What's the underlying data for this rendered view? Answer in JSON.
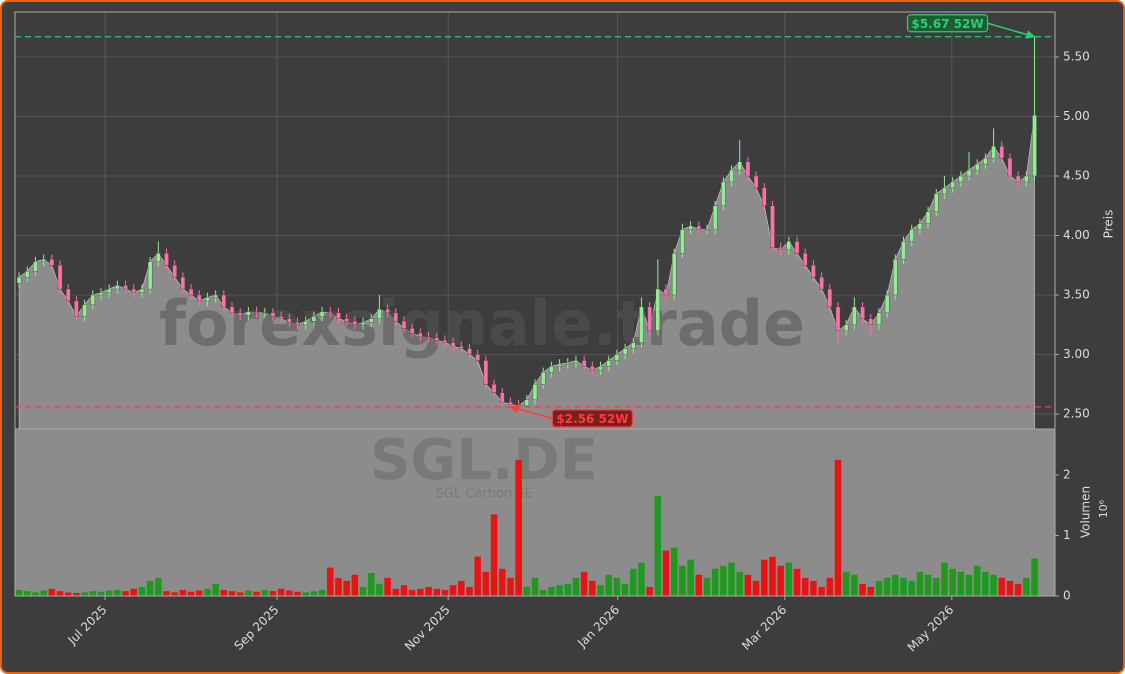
{
  "chart_data": {
    "type": "candlestick",
    "watermark": "forexsignale.trade",
    "symbol": "SGL.DE",
    "company": "SGL Carbon SE",
    "y_label": "Preis",
    "volume_label": "Volumen",
    "volume_unit": "10⁶",
    "up_color": "#90ee90",
    "down_color": "#ff6fa8",
    "volume_up_color": "#1f9a1f",
    "volume_down_color": "#e81414",
    "area_color": "#8c8c8c",
    "grid": true,
    "xlim": [
      -0.5,
      126.5
    ],
    "xticks": [
      {
        "value": 10.5,
        "label": "Jul 2025"
      },
      {
        "value": 31.5,
        "label": "Sep 2025"
      },
      {
        "value": 52.4,
        "label": "Nov 2025"
      },
      {
        "value": 73.1,
        "label": "Jan 2026"
      },
      {
        "value": 93.5,
        "label": "Mar 2026"
      },
      {
        "value": 113.9,
        "label": "May 2026"
      }
    ],
    "ylim": [
      2.374,
      5.878
    ],
    "yticks": [
      {
        "value": 2.5,
        "label": "2.50"
      },
      {
        "value": 3,
        "label": "3.00"
      },
      {
        "value": 3.5,
        "label": "3.50"
      },
      {
        "value": 4,
        "label": "4.00"
      },
      {
        "value": 4.5,
        "label": "4.50"
      },
      {
        "value": 5,
        "label": "5.00"
      },
      {
        "value": 5.5,
        "label": "5.50"
      }
    ],
    "volume_lim": [
      0,
      2.76
    ],
    "volume_ticks": [
      0,
      1,
      2
    ],
    "annotations": [
      {
        "text": "$5.67 52W",
        "value": 5.67,
        "color": "#2ecc71",
        "box_color": "#1e5c34"
      },
      {
        "text": "$2.56 52W",
        "value": 2.56,
        "color": "#ff3b3b",
        "box_color": "#7a1f1f"
      }
    ],
    "open": [
      3.6,
      3.65,
      3.7,
      3.78,
      3.8,
      3.75,
      3.55,
      3.45,
      3.32,
      3.42,
      3.5,
      3.52,
      3.55,
      3.58,
      3.55,
      3.52,
      3.55,
      3.78,
      3.85,
      3.75,
      3.65,
      3.55,
      3.5,
      3.45,
      3.48,
      3.5,
      3.4,
      3.35,
      3.33,
      3.36,
      3.35,
      3.35,
      3.32,
      3.3,
      3.27,
      3.25,
      3.28,
      3.32,
      3.36,
      3.35,
      3.3,
      3.28,
      3.25,
      3.27,
      3.3,
      3.38,
      3.35,
      3.28,
      3.22,
      3.18,
      3.15,
      3.14,
      3.12,
      3.1,
      3.07,
      3.05,
      3.0,
      2.95,
      2.75,
      2.68,
      2.6,
      2.58,
      2.57,
      2.62,
      2.75,
      2.85,
      2.9,
      2.92,
      2.93,
      2.95,
      2.9,
      2.87,
      2.9,
      2.95,
      3.0,
      3.05,
      3.1,
      3.4,
      3.2,
      3.55,
      3.5,
      3.85,
      4.05,
      4.08,
      4.05,
      4.05,
      4.25,
      4.45,
      4.55,
      4.62,
      4.5,
      4.4,
      4.25,
      3.9,
      3.88,
      3.95,
      3.85,
      3.75,
      3.65,
      3.55,
      3.4,
      3.2,
      3.25,
      3.4,
      3.3,
      3.25,
      3.35,
      3.5,
      3.8,
      3.95,
      4.05,
      4.1,
      4.2,
      4.35,
      4.4,
      4.45,
      4.5,
      4.55,
      4.6,
      4.65,
      4.75,
      4.65,
      4.5,
      4.45,
      4.5
    ],
    "high": [
      3.69,
      3.74,
      3.82,
      3.84,
      3.84,
      3.79,
      3.59,
      3.49,
      3.46,
      3.54,
      3.56,
      3.59,
      3.62,
      3.62,
      3.59,
      3.59,
      3.82,
      3.95,
      3.89,
      3.79,
      3.69,
      3.59,
      3.54,
      3.52,
      3.54,
      3.54,
      3.44,
      3.39,
      3.4,
      3.4,
      3.39,
      3.39,
      3.36,
      3.34,
      3.31,
      3.32,
      3.36,
      3.4,
      3.4,
      3.39,
      3.34,
      3.32,
      3.31,
      3.34,
      3.5,
      3.42,
      3.39,
      3.32,
      3.26,
      3.22,
      3.19,
      3.18,
      3.16,
      3.14,
      3.11,
      3.09,
      3.04,
      2.99,
      2.79,
      2.72,
      2.64,
      2.62,
      2.66,
      2.79,
      2.89,
      2.94,
      2.96,
      2.97,
      2.99,
      2.99,
      2.94,
      2.94,
      2.99,
      3.04,
      3.09,
      3.14,
      3.48,
      3.44,
      3.8,
      3.59,
      3.89,
      4.1,
      4.12,
      4.12,
      4.09,
      4.29,
      4.49,
      4.59,
      4.8,
      4.66,
      4.54,
      4.44,
      4.29,
      3.94,
      3.99,
      3.99,
      3.89,
      3.79,
      3.69,
      3.59,
      3.44,
      3.29,
      3.48,
      3.44,
      3.34,
      3.39,
      3.54,
      3.84,
      3.99,
      4.09,
      4.14,
      4.24,
      4.39,
      4.5,
      4.49,
      4.54,
      4.7,
      4.64,
      4.69,
      4.9,
      4.79,
      4.69,
      4.54,
      4.54,
      5.67
    ],
    "low": [
      3.56,
      3.61,
      3.66,
      3.74,
      3.71,
      3.51,
      3.41,
      3.28,
      3.28,
      3.38,
      3.46,
      3.48,
      3.51,
      3.51,
      3.48,
      3.48,
      3.51,
      3.74,
      3.71,
      3.61,
      3.51,
      3.46,
      3.41,
      3.41,
      3.44,
      3.36,
      3.31,
      3.29,
      3.29,
      3.31,
      3.31,
      3.28,
      3.26,
      3.23,
      3.21,
      3.21,
      3.24,
      3.28,
      3.31,
      3.26,
      3.24,
      3.21,
      3.21,
      3.23,
      3.26,
      3.31,
      3.24,
      3.18,
      3.14,
      3.11,
      3.1,
      3.08,
      3.06,
      3.03,
      3.01,
      2.96,
      2.91,
      2.71,
      2.64,
      2.57,
      2.56,
      2.57,
      2.57,
      2.58,
      2.71,
      2.81,
      2.86,
      2.88,
      2.89,
      2.86,
      2.83,
      2.83,
      2.86,
      2.91,
      2.96,
      3.01,
      3.06,
      3.16,
      3.16,
      3.46,
      3.46,
      3.81,
      4.01,
      4.01,
      4.01,
      4.01,
      4.21,
      4.41,
      4.51,
      4.46,
      4.36,
      4.21,
      3.86,
      3.82,
      3.84,
      3.81,
      3.71,
      3.61,
      3.51,
      3.36,
      3.1,
      3.16,
      3.21,
      3.26,
      3.15,
      3.21,
      3.31,
      3.46,
      3.76,
      3.91,
      4.01,
      4.06,
      4.16,
      4.31,
      4.36,
      4.41,
      4.46,
      4.51,
      4.56,
      4.61,
      4.61,
      4.46,
      4.41,
      4.41,
      4.46
    ],
    "close": [
      3.65,
      3.7,
      3.78,
      3.8,
      3.75,
      3.55,
      3.45,
      3.32,
      3.42,
      3.5,
      3.52,
      3.55,
      3.58,
      3.55,
      3.52,
      3.55,
      3.78,
      3.85,
      3.75,
      3.65,
      3.55,
      3.5,
      3.45,
      3.48,
      3.5,
      3.4,
      3.35,
      3.33,
      3.36,
      3.35,
      3.35,
      3.32,
      3.3,
      3.27,
      3.25,
      3.28,
      3.32,
      3.36,
      3.35,
      3.3,
      3.28,
      3.25,
      3.27,
      3.3,
      3.38,
      3.35,
      3.28,
      3.22,
      3.18,
      3.15,
      3.14,
      3.12,
      3.1,
      3.07,
      3.05,
      3.0,
      2.95,
      2.75,
      2.68,
      2.6,
      2.58,
      2.57,
      2.62,
      2.75,
      2.85,
      2.9,
      2.92,
      2.93,
      2.95,
      2.9,
      2.87,
      2.9,
      2.95,
      3.0,
      3.05,
      3.1,
      3.4,
      3.2,
      3.55,
      3.5,
      3.85,
      4.05,
      4.08,
      4.05,
      4.05,
      4.25,
      4.45,
      4.55,
      4.62,
      4.5,
      4.4,
      4.25,
      3.9,
      3.88,
      3.95,
      3.85,
      3.75,
      3.65,
      3.55,
      3.4,
      3.2,
      3.25,
      3.4,
      3.3,
      3.25,
      3.35,
      3.5,
      3.8,
      3.95,
      4.05,
      4.1,
      4.2,
      4.35,
      4.4,
      4.45,
      4.5,
      4.55,
      4.6,
      4.65,
      4.75,
      4.65,
      4.5,
      4.45,
      4.5,
      5.01
    ],
    "volume": [
      0.1,
      0.08,
      0.06,
      0.09,
      0.12,
      0.08,
      0.06,
      0.05,
      0.06,
      0.08,
      0.07,
      0.09,
      0.1,
      0.08,
      0.12,
      0.15,
      0.25,
      0.3,
      0.08,
      0.06,
      0.1,
      0.07,
      0.09,
      0.12,
      0.2,
      0.1,
      0.08,
      0.06,
      0.09,
      0.07,
      0.1,
      0.08,
      0.12,
      0.09,
      0.07,
      0.06,
      0.08,
      0.1,
      0.47,
      0.3,
      0.25,
      0.35,
      0.15,
      0.38,
      0.2,
      0.3,
      0.12,
      0.18,
      0.1,
      0.12,
      0.15,
      0.12,
      0.1,
      0.18,
      0.25,
      0.15,
      0.65,
      0.4,
      1.35,
      0.45,
      0.3,
      2.25,
      0.15,
      0.3,
      0.1,
      0.15,
      0.18,
      0.2,
      0.3,
      0.4,
      0.25,
      0.18,
      0.35,
      0.3,
      0.2,
      0.45,
      0.55,
      0.15,
      1.65,
      0.75,
      0.8,
      0.5,
      0.6,
      0.35,
      0.3,
      0.45,
      0.5,
      0.55,
      0.4,
      0.35,
      0.25,
      0.6,
      0.65,
      0.5,
      0.55,
      0.45,
      0.3,
      0.25,
      0.15,
      0.3,
      2.25,
      0.4,
      0.35,
      0.2,
      0.15,
      0.25,
      0.3,
      0.35,
      0.3,
      0.25,
      0.4,
      0.35,
      0.3,
      0.55,
      0.45,
      0.4,
      0.35,
      0.5,
      0.4,
      0.35,
      0.3,
      0.25,
      0.2,
      0.3,
      0.62
    ]
  }
}
